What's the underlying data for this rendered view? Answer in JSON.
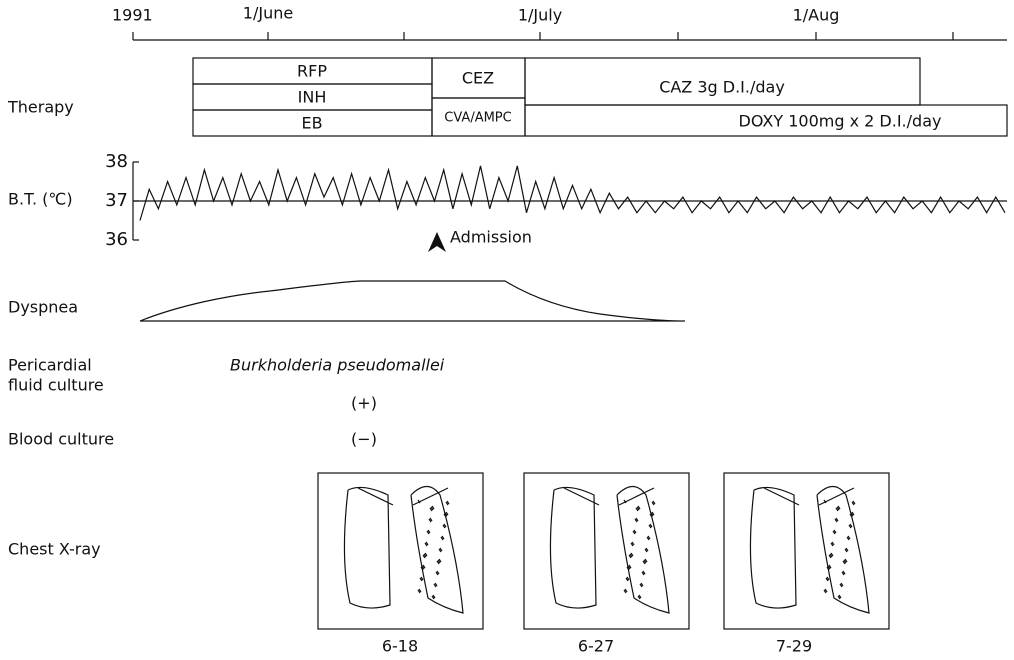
{
  "timeline": {
    "year": "1991",
    "months": [
      "1/June",
      "1/July",
      "1/Aug"
    ]
  },
  "labels": {
    "therapy": "Therapy",
    "bt": "B.T. (℃)",
    "dyspnea": "Dyspnea",
    "pericardial": [
      "Pericardial",
      "fluid culture"
    ],
    "blood": "Blood culture",
    "xray": "Chest X-ray"
  },
  "therapy": {
    "rfp": "RFP",
    "inh": "INH",
    "eb": "EB",
    "cez": "CEZ",
    "cva": "CVA/AMPC",
    "caz": "CAZ 3g D.I./day",
    "doxy": "DOXY 100mg x 2 D.I./day"
  },
  "temperature": {
    "ticks": [
      36,
      37,
      38
    ],
    "values": [
      36.5,
      37.3,
      36.8,
      37.5,
      36.9,
      37.6,
      36.9,
      37.8,
      37.0,
      37.6,
      36.9,
      37.7,
      37.0,
      37.5,
      36.9,
      37.8,
      37.0,
      37.6,
      36.9,
      37.7,
      37.1,
      37.6,
      36.9,
      37.7,
      36.9,
      37.6,
      37.0,
      37.8,
      36.8,
      37.5,
      36.9,
      37.6,
      37.0,
      37.8,
      36.8,
      37.7,
      36.9,
      37.9,
      36.8,
      37.6,
      37.0,
      37.9,
      36.7,
      37.5,
      36.8,
      37.6,
      36.8,
      37.4,
      36.8,
      37.3,
      36.7,
      37.2,
      36.8,
      37.1,
      36.7,
      37.0,
      36.7,
      37.0,
      36.8,
      37.1,
      36.7,
      37.0,
      36.8,
      37.1,
      36.7,
      37.0,
      36.7,
      37.1,
      36.8,
      37.0,
      36.7,
      37.1,
      36.8,
      37.0,
      36.7,
      37.1,
      36.7,
      37.0,
      36.8,
      37.1,
      36.7,
      37.0,
      36.7,
      37.1,
      36.8,
      37.0,
      36.7,
      37.1,
      36.7,
      37.0,
      36.8,
      37.1,
      36.7,
      37.1,
      36.7
    ]
  },
  "admission": "Admission",
  "organism": "Burkholderia pseudomallei",
  "pericardial_result": "(+)",
  "blood_result": "(−)",
  "xray_dates": [
    "6-18",
    "6-27",
    "7-29"
  ]
}
